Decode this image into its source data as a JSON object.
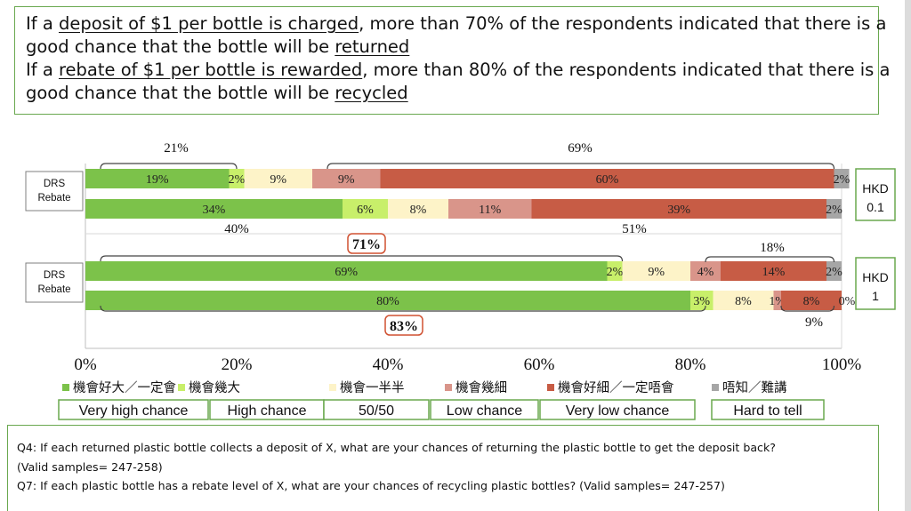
{
  "headline": {
    "line1": {
      "pre": "If a ",
      "u1": "deposit of $1 per bottle is charged",
      "mid": ", more than 70% of the respondents indicated that there is a"
    },
    "line2": {
      "pre": "good chance that the bottle will be ",
      "u2": "returned"
    },
    "line3": {
      "pre": "If a ",
      "u1": "rebate of $1 per bottle is rewarded",
      "mid": ", more than 80% of the respondents indicated that there is a"
    },
    "line4": {
      "pre": "good chance that the bottle will be ",
      "u2": "recycled"
    }
  },
  "footer": {
    "q4": "Q4: If each returned plastic bottle collects a deposit of X, what are your chances of returning the plastic bottle to get the deposit back?",
    "q4_samples": "(Valid samples= 247-258)",
    "q7": "Q7: If each plastic bottle has a rebate level of X, what are your chances of recycling plastic bottles? (Valid samples= 247-257)"
  },
  "colors": {
    "very_high": "#7cc24a",
    "high": "#c8ef6a",
    "fifty": "#fdf3c8",
    "low": "#d9958a",
    "very_low": "#c75c45",
    "hard": "#a6a6a6",
    "box_border": "#6aa84f",
    "callout_border": "#d05030"
  },
  "chart_data": {
    "type": "bar",
    "orientation": "horizontal",
    "stacked": true,
    "xlim": [
      0,
      100
    ],
    "x_ticks": [
      "0%",
      "20%",
      "40%",
      "60%",
      "80%",
      "100%"
    ],
    "categories_zh": [
      "機會好大／一定會",
      "機會幾大",
      "機會一半半",
      "機會幾細",
      "機會好細／一定唔會",
      "唔知／難講"
    ],
    "categories_en": [
      "Very high chance",
      "High chance",
      "50/50",
      "Low chance",
      "Very low chance",
      "Hard to tell"
    ],
    "groups": [
      {
        "level": [
          "HKD",
          "0.1"
        ],
        "row_labels": [
          "DRS",
          "Rebate"
        ],
        "bars": [
          {
            "values": [
              19,
              2,
              9,
              9,
              60,
              2
            ],
            "labels": [
              "19%",
              "2%",
              "9%",
              "9%",
              "60%",
              "2%"
            ]
          },
          {
            "values": [
              34,
              6,
              8,
              11,
              39,
              2
            ],
            "labels": [
              "34%",
              "6%",
              "8%",
              "11%",
              "39%",
              "2%"
            ]
          }
        ],
        "annotations": [
          "21%",
          "69%",
          "40%",
          "51%"
        ]
      },
      {
        "level": [
          "HKD",
          "1"
        ],
        "row_labels": [
          "DRS",
          "Rebate"
        ],
        "bars": [
          {
            "values": [
              69,
              2,
              9,
              4,
              14,
              2
            ],
            "labels": [
              "69%",
              "2%",
              "9%",
              "4%",
              "14%",
              "2%"
            ]
          },
          {
            "values": [
              80,
              3,
              8,
              1,
              8,
              0
            ],
            "labels": [
              "80%",
              "3%",
              "8%",
              "1%",
              "8%",
              "0%"
            ]
          }
        ],
        "annotations": [
          "71%",
          "18%",
          "83%",
          "9%"
        ]
      }
    ]
  }
}
